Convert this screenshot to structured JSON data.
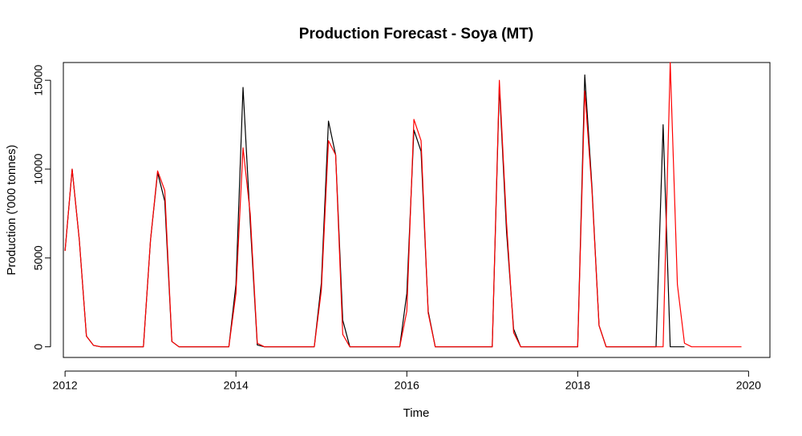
{
  "chart_data": {
    "type": "line",
    "title": "Production Forecast - Soya (MT)",
    "xlabel": "Time",
    "ylabel": "Production ('000 tonnes)",
    "xlim": [
      2011.98,
      2020.25
    ],
    "ylim": [
      -600,
      16000
    ],
    "xticks": [
      2012,
      2014,
      2016,
      2018,
      2020
    ],
    "yticks": [
      0,
      5000,
      10000,
      15000
    ],
    "grid": false,
    "series": [
      {
        "color": "#000000",
        "x": [
          2012.0,
          2012.083,
          2012.167,
          2012.25,
          2012.333,
          2012.417,
          2012.5,
          2012.583,
          2012.667,
          2012.75,
          2012.833,
          2012.917,
          2013.0,
          2013.083,
          2013.167,
          2013.25,
          2013.333,
          2013.417,
          2013.5,
          2013.583,
          2013.667,
          2013.75,
          2013.833,
          2013.917,
          2014.0,
          2014.083,
          2014.167,
          2014.25,
          2014.333,
          2014.417,
          2014.5,
          2014.583,
          2014.667,
          2014.75,
          2014.833,
          2014.917,
          2015.0,
          2015.083,
          2015.167,
          2015.25,
          2015.333,
          2015.417,
          2015.5,
          2015.583,
          2015.667,
          2015.75,
          2015.833,
          2015.917,
          2016.0,
          2016.083,
          2016.167,
          2016.25,
          2016.333,
          2016.417,
          2016.5,
          2016.583,
          2016.667,
          2016.75,
          2016.833,
          2016.917,
          2017.0,
          2017.083,
          2017.167,
          2017.25,
          2017.333,
          2017.417,
          2017.5,
          2017.583,
          2017.667,
          2017.75,
          2017.833,
          2017.917,
          2018.0,
          2018.083,
          2018.167,
          2018.25,
          2018.333,
          2018.417,
          2018.5,
          2018.583,
          2018.667,
          2018.75,
          2018.833,
          2018.917,
          2019.0,
          2019.083,
          2019.167,
          2019.25
        ],
        "y": [
          5400,
          10000,
          6000,
          600,
          80,
          0,
          0,
          0,
          0,
          0,
          0,
          0,
          6000,
          9800,
          8200,
          300,
          0,
          0,
          0,
          0,
          0,
          0,
          0,
          0,
          3500,
          14600,
          7000,
          100,
          0,
          0,
          0,
          0,
          0,
          0,
          0,
          0,
          3600,
          12700,
          10800,
          1500,
          0,
          0,
          0,
          0,
          0,
          0,
          0,
          0,
          3000,
          12200,
          11000,
          2000,
          0,
          0,
          0,
          0,
          0,
          0,
          0,
          0,
          0,
          14700,
          6500,
          1000,
          0,
          0,
          0,
          0,
          0,
          0,
          0,
          0,
          0,
          15300,
          9000,
          1200,
          0,
          0,
          0,
          0,
          0,
          0,
          0,
          0,
          12500,
          0,
          0,
          0
        ]
      },
      {
        "color": "#ff0000",
        "x": [
          2012.0,
          2012.083,
          2012.167,
          2012.25,
          2012.333,
          2012.417,
          2012.5,
          2012.583,
          2012.667,
          2012.75,
          2012.833,
          2012.917,
          2013.0,
          2013.083,
          2013.167,
          2013.25,
          2013.333,
          2013.417,
          2013.5,
          2013.583,
          2013.667,
          2013.75,
          2013.833,
          2013.917,
          2014.0,
          2014.083,
          2014.167,
          2014.25,
          2014.333,
          2014.417,
          2014.5,
          2014.583,
          2014.667,
          2014.75,
          2014.833,
          2014.917,
          2015.0,
          2015.083,
          2015.167,
          2015.25,
          2015.333,
          2015.417,
          2015.5,
          2015.583,
          2015.667,
          2015.75,
          2015.833,
          2015.917,
          2016.0,
          2016.083,
          2016.167,
          2016.25,
          2016.333,
          2016.417,
          2016.5,
          2016.583,
          2016.667,
          2016.75,
          2016.833,
          2016.917,
          2017.0,
          2017.083,
          2017.167,
          2017.25,
          2017.333,
          2017.417,
          2017.5,
          2017.583,
          2017.667,
          2017.75,
          2017.833,
          2017.917,
          2018.0,
          2018.083,
          2018.167,
          2018.25,
          2018.333,
          2018.417,
          2018.5,
          2018.583,
          2018.667,
          2018.75,
          2018.833,
          2018.917,
          2019.0,
          2019.083,
          2019.167,
          2019.25,
          2019.333,
          2019.417,
          2019.5,
          2019.583,
          2019.667,
          2019.75,
          2019.833,
          2019.917
        ],
        "y": [
          5400,
          10000,
          6000,
          600,
          80,
          0,
          0,
          0,
          0,
          0,
          0,
          0,
          6000,
          9900,
          8800,
          300,
          0,
          0,
          0,
          0,
          0,
          0,
          0,
          0,
          3000,
          11200,
          7500,
          200,
          0,
          0,
          0,
          0,
          0,
          0,
          0,
          0,
          3200,
          11600,
          10800,
          700,
          0,
          0,
          0,
          0,
          0,
          0,
          0,
          0,
          2000,
          12800,
          11600,
          1900,
          0,
          0,
          0,
          0,
          0,
          0,
          0,
          0,
          0,
          15000,
          7000,
          800,
          0,
          0,
          0,
          0,
          0,
          0,
          0,
          0,
          0,
          14400,
          8800,
          1200,
          0,
          0,
          0,
          0,
          0,
          0,
          0,
          0,
          0,
          16000,
          3500,
          200,
          0,
          0,
          0,
          0,
          0,
          0,
          0,
          0
        ]
      }
    ]
  }
}
